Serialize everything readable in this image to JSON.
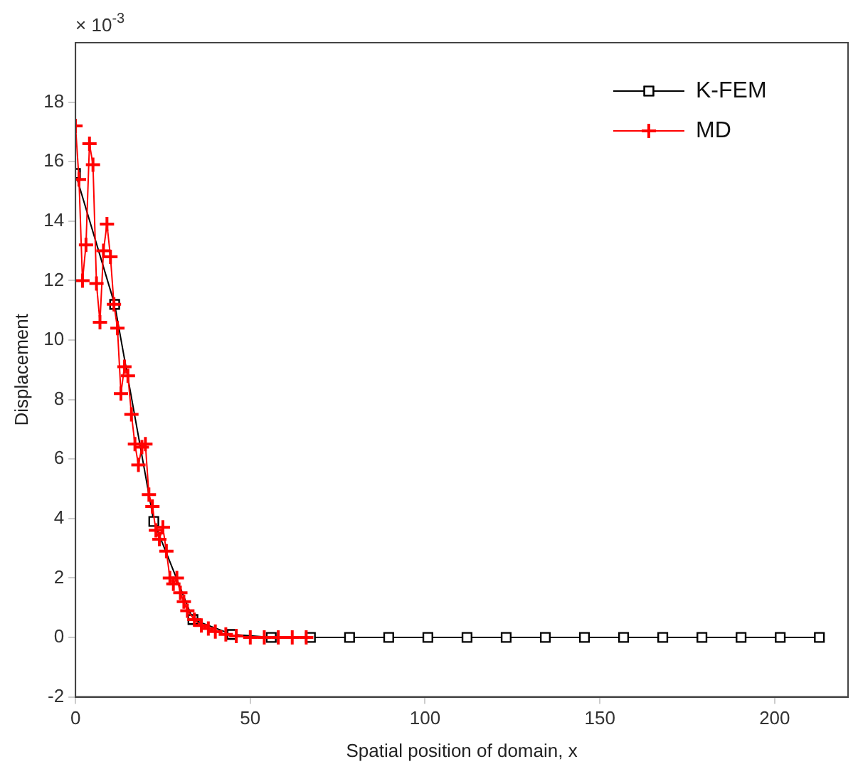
{
  "chart_data": {
    "type": "line",
    "xlabel": "Spatial position of domain, x",
    "ylabel": "Displacement",
    "annotations": [
      "× 10$^{-3}$"
    ],
    "xlim": [
      0,
      221
    ],
    "xticks": [
      0,
      50,
      100,
      150,
      200
    ],
    "ylim": [
      -2,
      20
    ],
    "yticks": [
      -2,
      0,
      2,
      4,
      6,
      8,
      10,
      12,
      14,
      16,
      18
    ],
    "grid": false,
    "legend": "top right",
    "line_style": "solid",
    "series": [
      {
        "name": "K-FEM",
        "color": "#000000",
        "marker": "square",
        "x": [
          0,
          11.2,
          22.4,
          33.6,
          44.8,
          56,
          67.2,
          78.4,
          89.6,
          100.8,
          112,
          123.2,
          134.4,
          145.6,
          156.8,
          168,
          179.2,
          190.4,
          201.6,
          212.8
        ],
        "values": [
          15.6,
          11.2,
          3.9,
          0.6,
          0.1,
          0,
          0,
          0,
          0,
          0,
          0,
          0,
          0,
          0,
          0,
          0,
          0,
          0,
          0,
          0
        ]
      },
      {
        "name": "MD",
        "color": "#ff0000",
        "marker": "cross",
        "x": [
          0,
          1,
          2,
          3,
          4,
          5,
          6,
          7,
          8,
          9,
          10,
          11,
          12,
          13,
          14,
          15,
          16,
          17,
          18,
          19,
          20,
          21,
          22,
          23,
          24,
          25,
          26,
          27,
          28,
          29,
          30,
          31,
          32,
          34,
          36,
          38,
          40,
          43,
          46,
          50,
          54,
          58,
          62,
          66
        ],
        "values": [
          17.2,
          15.4,
          12.0,
          13.2,
          16.6,
          15.9,
          11.9,
          10.6,
          13.0,
          13.9,
          12.8,
          11.2,
          10.4,
          8.2,
          9.1,
          8.8,
          7.5,
          6.5,
          5.8,
          6.4,
          6.5,
          4.8,
          4.4,
          3.6,
          3.3,
          3.7,
          2.9,
          2.0,
          1.8,
          2.0,
          1.5,
          1.2,
          0.9,
          0.6,
          0.4,
          0.3,
          0.2,
          0.1,
          0.05,
          0,
          0,
          0,
          0,
          0
        ]
      }
    ]
  }
}
